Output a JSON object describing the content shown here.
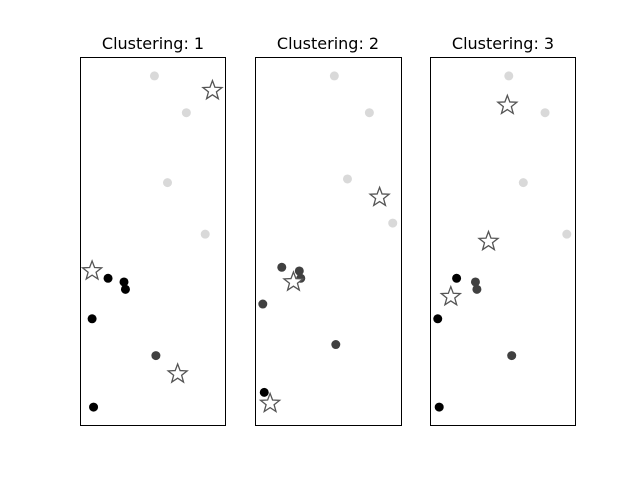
{
  "colors": {
    "black": "#000000",
    "dark_gray": "#404040",
    "light_gray": "#d9d9d9",
    "star_edge": "#555555"
  },
  "chart_data": [
    {
      "type": "scatter",
      "title": "Clustering: 1",
      "xlim": [
        0,
        1
      ],
      "ylim": [
        0,
        1
      ],
      "points": [
        {
          "x": 0.51,
          "y": 0.95,
          "shade": "light_gray"
        },
        {
          "x": 0.73,
          "y": 0.85,
          "shade": "light_gray"
        },
        {
          "x": 0.6,
          "y": 0.66,
          "shade": "light_gray"
        },
        {
          "x": 0.86,
          "y": 0.52,
          "shade": "light_gray"
        },
        {
          "x": 0.19,
          "y": 0.4,
          "shade": "black"
        },
        {
          "x": 0.3,
          "y": 0.39,
          "shade": "black"
        },
        {
          "x": 0.31,
          "y": 0.37,
          "shade": "black"
        },
        {
          "x": 0.08,
          "y": 0.29,
          "shade": "black"
        },
        {
          "x": 0.09,
          "y": 0.05,
          "shade": "black"
        },
        {
          "x": 0.52,
          "y": 0.19,
          "shade": "dark_gray"
        }
      ],
      "centroids": [
        {
          "x": 0.91,
          "y": 0.91
        },
        {
          "x": 0.08,
          "y": 0.42
        },
        {
          "x": 0.67,
          "y": 0.14
        }
      ]
    },
    {
      "type": "scatter",
      "title": "Clustering: 2",
      "xlim": [
        0,
        1
      ],
      "ylim": [
        0,
        1
      ],
      "points": [
        {
          "x": 0.54,
          "y": 0.95,
          "shade": "light_gray"
        },
        {
          "x": 0.78,
          "y": 0.85,
          "shade": "light_gray"
        },
        {
          "x": 0.63,
          "y": 0.67,
          "shade": "light_gray"
        },
        {
          "x": 0.94,
          "y": 0.55,
          "shade": "light_gray"
        },
        {
          "x": 0.18,
          "y": 0.43,
          "shade": "dark_gray"
        },
        {
          "x": 0.3,
          "y": 0.42,
          "shade": "dark_gray"
        },
        {
          "x": 0.31,
          "y": 0.4,
          "shade": "dark_gray"
        },
        {
          "x": 0.05,
          "y": 0.33,
          "shade": "dark_gray"
        },
        {
          "x": 0.55,
          "y": 0.22,
          "shade": "dark_gray"
        },
        {
          "x": 0.06,
          "y": 0.09,
          "shade": "black"
        }
      ],
      "centroids": [
        {
          "x": 0.85,
          "y": 0.62
        },
        {
          "x": 0.26,
          "y": 0.39
        },
        {
          "x": 0.1,
          "y": 0.06
        }
      ]
    },
    {
      "type": "scatter",
      "title": "Clustering: 3",
      "xlim": [
        0,
        1
      ],
      "ylim": [
        0,
        1
      ],
      "points": [
        {
          "x": 0.54,
          "y": 0.95,
          "shade": "light_gray"
        },
        {
          "x": 0.79,
          "y": 0.85,
          "shade": "light_gray"
        },
        {
          "x": 0.64,
          "y": 0.66,
          "shade": "light_gray"
        },
        {
          "x": 0.94,
          "y": 0.52,
          "shade": "light_gray"
        },
        {
          "x": 0.18,
          "y": 0.4,
          "shade": "black"
        },
        {
          "x": 0.31,
          "y": 0.39,
          "shade": "dark_gray"
        },
        {
          "x": 0.32,
          "y": 0.37,
          "shade": "dark_gray"
        },
        {
          "x": 0.05,
          "y": 0.29,
          "shade": "black"
        },
        {
          "x": 0.56,
          "y": 0.19,
          "shade": "dark_gray"
        },
        {
          "x": 0.06,
          "y": 0.05,
          "shade": "black"
        }
      ],
      "centroids": [
        {
          "x": 0.53,
          "y": 0.87
        },
        {
          "x": 0.4,
          "y": 0.5
        },
        {
          "x": 0.14,
          "y": 0.35
        }
      ]
    }
  ]
}
